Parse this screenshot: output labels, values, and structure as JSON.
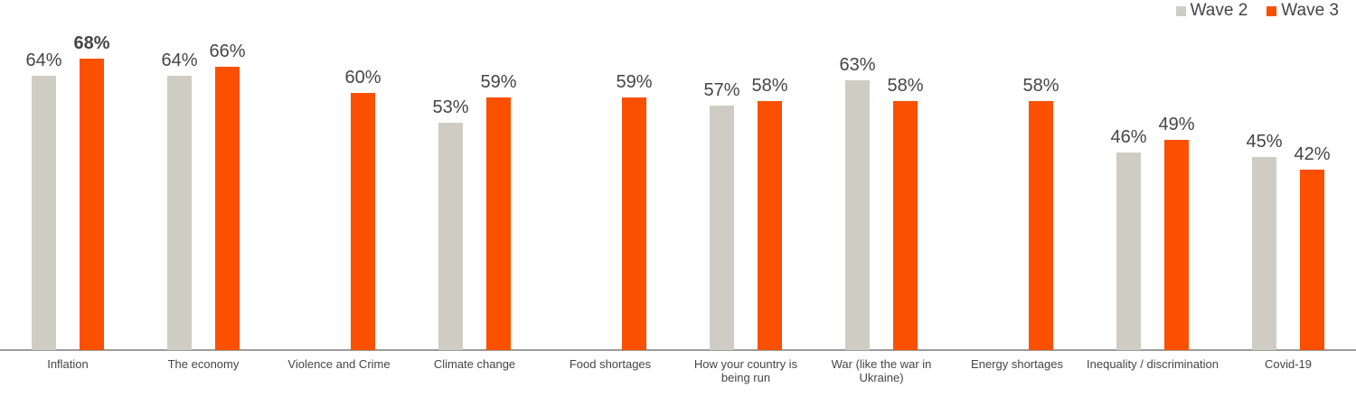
{
  "legend": {
    "items": [
      {
        "label": "Wave 2",
        "color": "#CFCDC3"
      },
      {
        "label": "Wave 3",
        "color": "#FA5000"
      }
    ]
  },
  "chart_data": {
    "type": "bar",
    "title": "",
    "categories": [
      "Inflation",
      "The economy",
      "Violence and Crime",
      "Climate change",
      "Food shortages",
      "How your country is\nbeing run",
      "War (like the war in\nUkraine)",
      "Energy shortages",
      "Inequality / discrimination",
      "Covid-19"
    ],
    "series": [
      {
        "name": "Wave 2",
        "color": "#CFCDC3",
        "values": [
          64,
          64,
          null,
          53,
          null,
          57,
          63,
          null,
          46,
          45
        ]
      },
      {
        "name": "Wave 3",
        "color": "#FA5000",
        "values": [
          68,
          66,
          60,
          59,
          59,
          58,
          58,
          58,
          49,
          42
        ]
      }
    ],
    "value_suffix": "%",
    "value_labels_shown": true,
    "bold_value_labels": [
      {
        "series": "Wave 3",
        "category": "Inflation"
      }
    ],
    "ylim": [
      0,
      82
    ],
    "grid": false,
    "legend_position": "top-right",
    "axis_line_color": "#9B9B9B",
    "text_color": "#454545"
  }
}
